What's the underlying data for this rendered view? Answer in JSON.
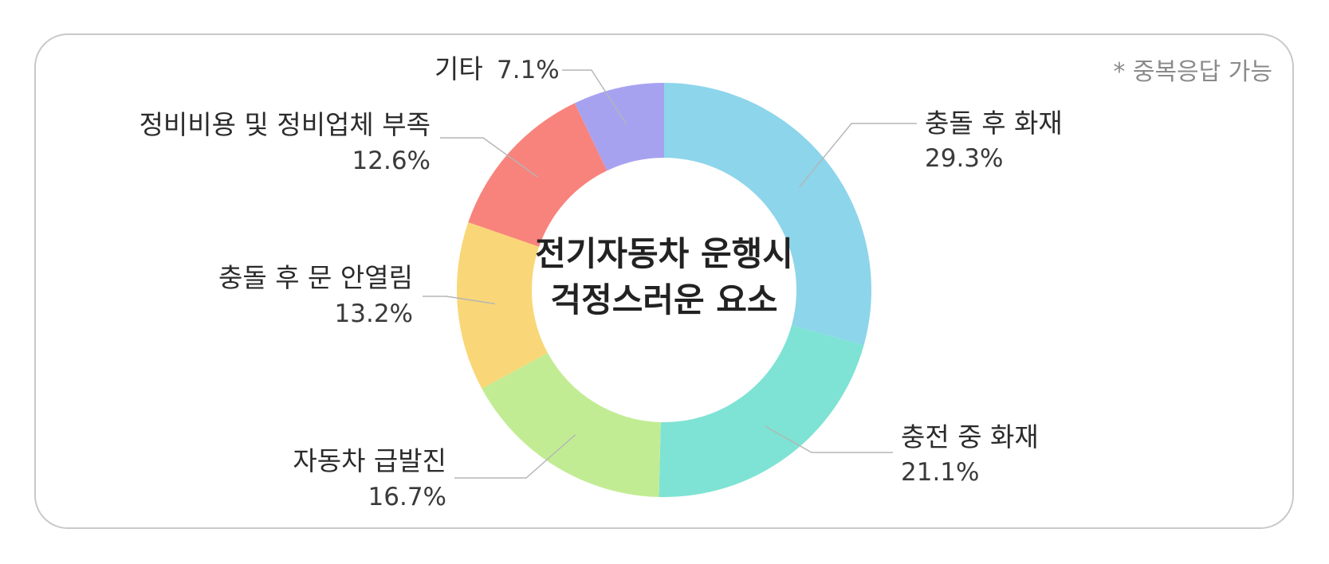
{
  "chart_data": {
    "type": "pie",
    "title": "전기자동차 운행시 걱정스러운 요소",
    "title_lines": [
      "전기자동차 운행시",
      "걱정스러운 요소"
    ],
    "note": "* 중복응답 가능",
    "unit": "%",
    "slices": [
      {
        "label": "충돌 후 화재",
        "value": 29.3,
        "display": "29.3%",
        "color": "#8dd5ea"
      },
      {
        "label": "충전 중 화재",
        "value": 21.1,
        "display": "21.1%",
        "color": "#7ee3d4"
      },
      {
        "label": "자동차 급발진",
        "value": 16.7,
        "display": "16.7%",
        "color": "#c2ec93"
      },
      {
        "label": "충돌 후 문 안열림",
        "value": 13.2,
        "display": "13.2%",
        "color": "#f9d778"
      },
      {
        "label": "정비비용 및 정비업체 부족",
        "value": 12.6,
        "display": "12.6%",
        "color": "#f8837c"
      },
      {
        "label": "기타",
        "value": 7.1,
        "display": "7.1%",
        "color": "#a7a2f0"
      }
    ]
  }
}
